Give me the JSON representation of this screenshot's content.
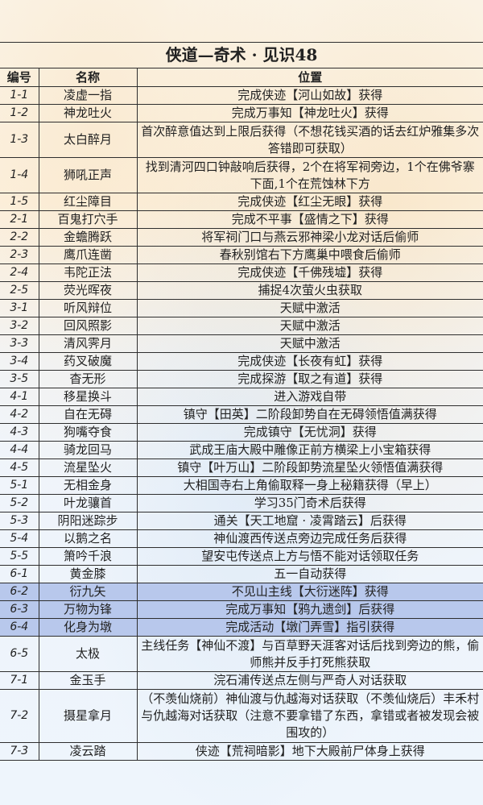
{
  "title": "侠道—奇术 · 见识48",
  "headers": [
    "编号",
    "名称",
    "位置"
  ],
  "highlight_color": "#b8c8ec",
  "rows": [
    {
      "id": "1-1",
      "name": "凌虚一指",
      "location": "完成侠迹【河山如故】获得",
      "lines": 1
    },
    {
      "id": "1-2",
      "name": "神龙吐火",
      "location": "完成万事知【神龙吐火】获得",
      "lines": 1
    },
    {
      "id": "1-3",
      "name": "太白醉月",
      "location": "首次醉意值达到上限后获得（不想花钱买酒的话去红炉雅集多次答错即可获取）",
      "lines": 2
    },
    {
      "id": "1-4",
      "name": "狮吼正声",
      "location": "找到清河四口钟敲响后获得，2个在将军祠旁边，1个在佛爷寨下面,1个在荒蚀林下方",
      "lines": 2
    },
    {
      "id": "1-5",
      "name": "红尘障目",
      "location": "完成侠迹【红尘无眼】获得",
      "lines": 1
    },
    {
      "id": "2-1",
      "name": "百鬼打穴手",
      "location": "完成不平事【盛情之下】获得",
      "lines": 1
    },
    {
      "id": "2-2",
      "name": "金蟾腾跃",
      "location": "将军祠门口与燕云邪神梁小龙对话后偷师",
      "lines": 1
    },
    {
      "id": "2-3",
      "name": "鹰爪连凿",
      "location": "春秋别馆右下方鹰巢中喂食后偷师",
      "lines": 1
    },
    {
      "id": "2-4",
      "name": "韦陀正法",
      "location": "完成侠迹【千佛残墟】获得",
      "lines": 1
    },
    {
      "id": "2-5",
      "name": "荧光晖夜",
      "location": "捕捉4次萤火虫获取",
      "lines": 1
    },
    {
      "id": "3-1",
      "name": "听风辩位",
      "location": "天赋中激活",
      "lines": 1
    },
    {
      "id": "3-2",
      "name": "回风照影",
      "location": "天赋中激活",
      "lines": 1
    },
    {
      "id": "3-3",
      "name": "清风霁月",
      "location": "天赋中激活",
      "lines": 1
    },
    {
      "id": "3-4",
      "name": "药叉破魔",
      "location": "完成侠迹【长夜有虹】获得",
      "lines": 1
    },
    {
      "id": "3-5",
      "name": "杳无形",
      "location": "完成探游【取之有道】获得",
      "lines": 1
    },
    {
      "id": "4-1",
      "name": "移星换斗",
      "location": "进入游戏自带",
      "lines": 1
    },
    {
      "id": "4-2",
      "name": "自在无碍",
      "location": "镇守【田英】二阶段卸势自在无碍领悟值满获得",
      "lines": 1
    },
    {
      "id": "4-3",
      "name": "狗嘴夺食",
      "location": "完成镇守【无忧洞】获得",
      "lines": 1
    },
    {
      "id": "4-4",
      "name": "骑龙回马",
      "location": "武成王庙大殿中雕像正前方横梁上小宝箱获得",
      "lines": 1
    },
    {
      "id": "4-5",
      "name": "流星坠火",
      "location": "镇守【叶万山】二阶段卸势流星坠火领悟值满获得",
      "lines": 1
    },
    {
      "id": "5-1",
      "name": "无相金身",
      "location": "大相国寺右上角偷取释一身上秘籍获得（早上）",
      "lines": 1
    },
    {
      "id": "5-2",
      "name": "叶龙骧首",
      "location": "学习35门奇术后获得",
      "lines": 1
    },
    {
      "id": "5-3",
      "name": "阴阳迷踪步",
      "location": "通关【天工地窟 · 凌霄踏云】后获得",
      "lines": 1
    },
    {
      "id": "5-4",
      "name": "以鹅之名",
      "location": "神仙渡西传送点旁边完成任务后获得",
      "lines": 1
    },
    {
      "id": "5-5",
      "name": "箫吟千浪",
      "location": "望安屯传送点上方与悟不能对话领取任务",
      "lines": 1
    },
    {
      "id": "6-1",
      "name": "黄金膝",
      "location": "五一自动获得",
      "lines": 1
    },
    {
      "id": "6-2",
      "name": "衍九矢",
      "location": "不见山主线【大衍迷阵】获得",
      "lines": 1,
      "highlight": true
    },
    {
      "id": "6-3",
      "name": "万物为锋",
      "location": "完成万事知【鸦九遗剑】后获得",
      "lines": 1,
      "highlight": true
    },
    {
      "id": "6-4",
      "name": "化身为墩",
      "location": "完成活动【墩门弄雪】指引获得",
      "lines": 1,
      "highlight": true
    },
    {
      "id": "6-5",
      "name": "太极",
      "location": "主线任务【神仙不渡】与百草野天涯客对话后找到旁边的熊，偷师熊并反手打死熊获取",
      "lines": 2
    },
    {
      "id": "7-1",
      "name": "金玉手",
      "location": "浣石浦传送点左侧与严奇人对话获取",
      "lines": 1
    },
    {
      "id": "7-2",
      "name": "摄星拿月",
      "location": "（不羡仙烧前）神仙渡与仇越海对话获取（不羡仙烧后）丰禾村与仇越海对话获取（注意不要拿错了东西，拿错或者被发现会被围攻的）",
      "lines": 3
    },
    {
      "id": "7-3",
      "name": "凌云踏",
      "location": "侠迹【荒祠暗影】地下大殿前尸体身上获得",
      "lines": 1
    }
  ]
}
